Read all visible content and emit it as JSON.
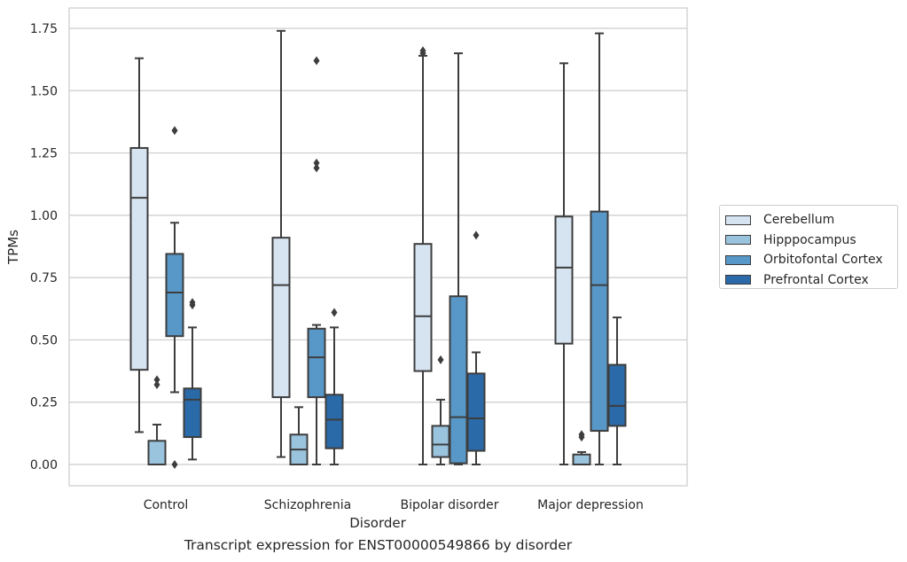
{
  "chart_data": {
    "type": "box",
    "title": "",
    "caption": "Transcript expression for ENST00000549866 by disorder",
    "xlabel": "Disorder",
    "ylabel": "TPMs",
    "ylim": [
      -0.08,
      1.83
    ],
    "yticks": [
      "0.00",
      "0.25",
      "0.50",
      "0.75",
      "1.00",
      "1.25",
      "1.50",
      "1.75"
    ],
    "grid": "horizontal",
    "legend_position": "right",
    "categories": [
      "Control",
      "Schizophrenia",
      "Bipolar disorder",
      "Major depression"
    ],
    "series": [
      {
        "name": "Cerebellum",
        "color": "#d6e4f2",
        "boxes": [
          {
            "whislo": 0.13,
            "q1": 0.38,
            "med": 1.07,
            "q3": 1.27,
            "whishi": 1.63,
            "fliers": []
          },
          {
            "whislo": 0.03,
            "q1": 0.27,
            "med": 0.72,
            "q3": 0.91,
            "whishi": 1.74,
            "fliers": []
          },
          {
            "whislo": 0.0,
            "q1": 0.375,
            "med": 0.595,
            "q3": 0.885,
            "whishi": 1.64,
            "fliers": [
              1.66,
              1.65
            ]
          },
          {
            "whislo": 0.0,
            "q1": 0.485,
            "med": 0.79,
            "q3": 0.995,
            "whishi": 1.61,
            "fliers": []
          }
        ]
      },
      {
        "name": "Hipppocampus",
        "color": "#9ac3dd",
        "boxes": [
          {
            "whislo": 0.0,
            "q1": 0.0,
            "med": 0.0,
            "q3": 0.095,
            "whishi": 0.16,
            "fliers": [
              0.34,
              0.32
            ]
          },
          {
            "whislo": 0.0,
            "q1": 0.0,
            "med": 0.06,
            "q3": 0.12,
            "whishi": 0.23,
            "fliers": []
          },
          {
            "whislo": 0.0,
            "q1": 0.03,
            "med": 0.08,
            "q3": 0.155,
            "whishi": 0.26,
            "fliers": [
              0.42
            ]
          },
          {
            "whislo": 0.0,
            "q1": 0.0,
            "med": 0.0,
            "q3": 0.04,
            "whishi": 0.05,
            "fliers": [
              0.12,
              0.11
            ]
          }
        ]
      },
      {
        "name": "Orbitofontal Cortex",
        "color": "#5898c8",
        "boxes": [
          {
            "whislo": 0.29,
            "q1": 0.515,
            "med": 0.69,
            "q3": 0.845,
            "whishi": 0.97,
            "fliers": [
              1.34,
              0.0
            ]
          },
          {
            "whislo": 0.0,
            "q1": 0.27,
            "med": 0.43,
            "q3": 0.545,
            "whishi": 0.56,
            "fliers": [
              1.62,
              1.21,
              1.19
            ]
          },
          {
            "whislo": 0.0,
            "q1": 0.005,
            "med": 0.19,
            "q3": 0.675,
            "whishi": 1.65,
            "fliers": []
          },
          {
            "whislo": 0.0,
            "q1": 0.135,
            "med": 0.72,
            "q3": 1.015,
            "whishi": 1.73,
            "fliers": []
          }
        ]
      },
      {
        "name": "Prefrontal Cortex",
        "color": "#2b6aa8",
        "boxes": [
          {
            "whislo": 0.02,
            "q1": 0.11,
            "med": 0.26,
            "q3": 0.305,
            "whishi": 0.55,
            "fliers": [
              0.65,
              0.64
            ]
          },
          {
            "whislo": 0.0,
            "q1": 0.065,
            "med": 0.18,
            "q3": 0.28,
            "whishi": 0.55,
            "fliers": [
              0.61
            ]
          },
          {
            "whislo": 0.0,
            "q1": 0.055,
            "med": 0.185,
            "q3": 0.365,
            "whishi": 0.45,
            "fliers": [
              0.92
            ]
          },
          {
            "whislo": 0.0,
            "q1": 0.155,
            "med": 0.235,
            "q3": 0.4,
            "whishi": 0.59,
            "fliers": []
          }
        ]
      }
    ]
  }
}
